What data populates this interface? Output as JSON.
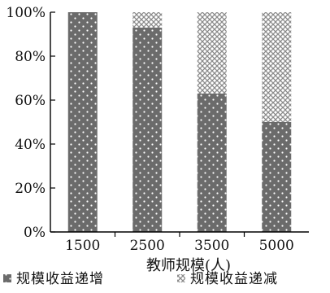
{
  "chart_data": {
    "type": "bar",
    "stacked": true,
    "categories": [
      "1500",
      "2500",
      "3500",
      "5000"
    ],
    "series": [
      {
        "name": "规模收益递增",
        "values": [
          100,
          93,
          63,
          50
        ],
        "pattern": "dotted-dark",
        "color": "#6b6b6b"
      },
      {
        "name": "规模收益递减",
        "values": [
          0,
          7,
          37,
          50
        ],
        "pattern": "crosshatch-light",
        "color": "#bdbdbd"
      }
    ],
    "xlabel": "教师规模(人)",
    "ylabel": "",
    "ylim": [
      0,
      100
    ],
    "y_ticks": [
      "0%",
      "20%",
      "40%",
      "60%",
      "80%",
      "100%"
    ],
    "grid": false,
    "legend_placement": "bottom"
  }
}
